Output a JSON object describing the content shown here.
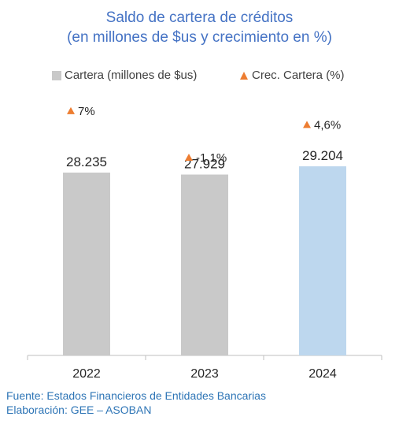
{
  "chart_data": {
    "type": "bar",
    "title": "Saldo de cartera de créditos",
    "subtitle": "(en millones de $us y crecimiento en %)",
    "categories": [
      "2022",
      "2023",
      "2024"
    ],
    "series": [
      {
        "name": "Cartera (millones de $us)",
        "type": "bar",
        "values": [
          28235,
          27929,
          29204
        ],
        "labels": [
          "28.235",
          "27.929",
          "29.204"
        ],
        "colors": [
          "#C9C9C9",
          "#C9C9C9",
          "#BDD7EE"
        ]
      },
      {
        "name": "Crec. Cartera (%)",
        "type": "marker",
        "values": [
          7.0,
          -1.1,
          4.6
        ],
        "labels": [
          "7%",
          "-1,1%",
          "4,6%"
        ],
        "color": "#ED7D31"
      }
    ],
    "grid": false,
    "legend_position": "top"
  },
  "footer": {
    "source": "Fuente: Estados Financieros de Entidades Bancarias",
    "elaboration": "Elaboración: GEE – ASOBAN"
  }
}
